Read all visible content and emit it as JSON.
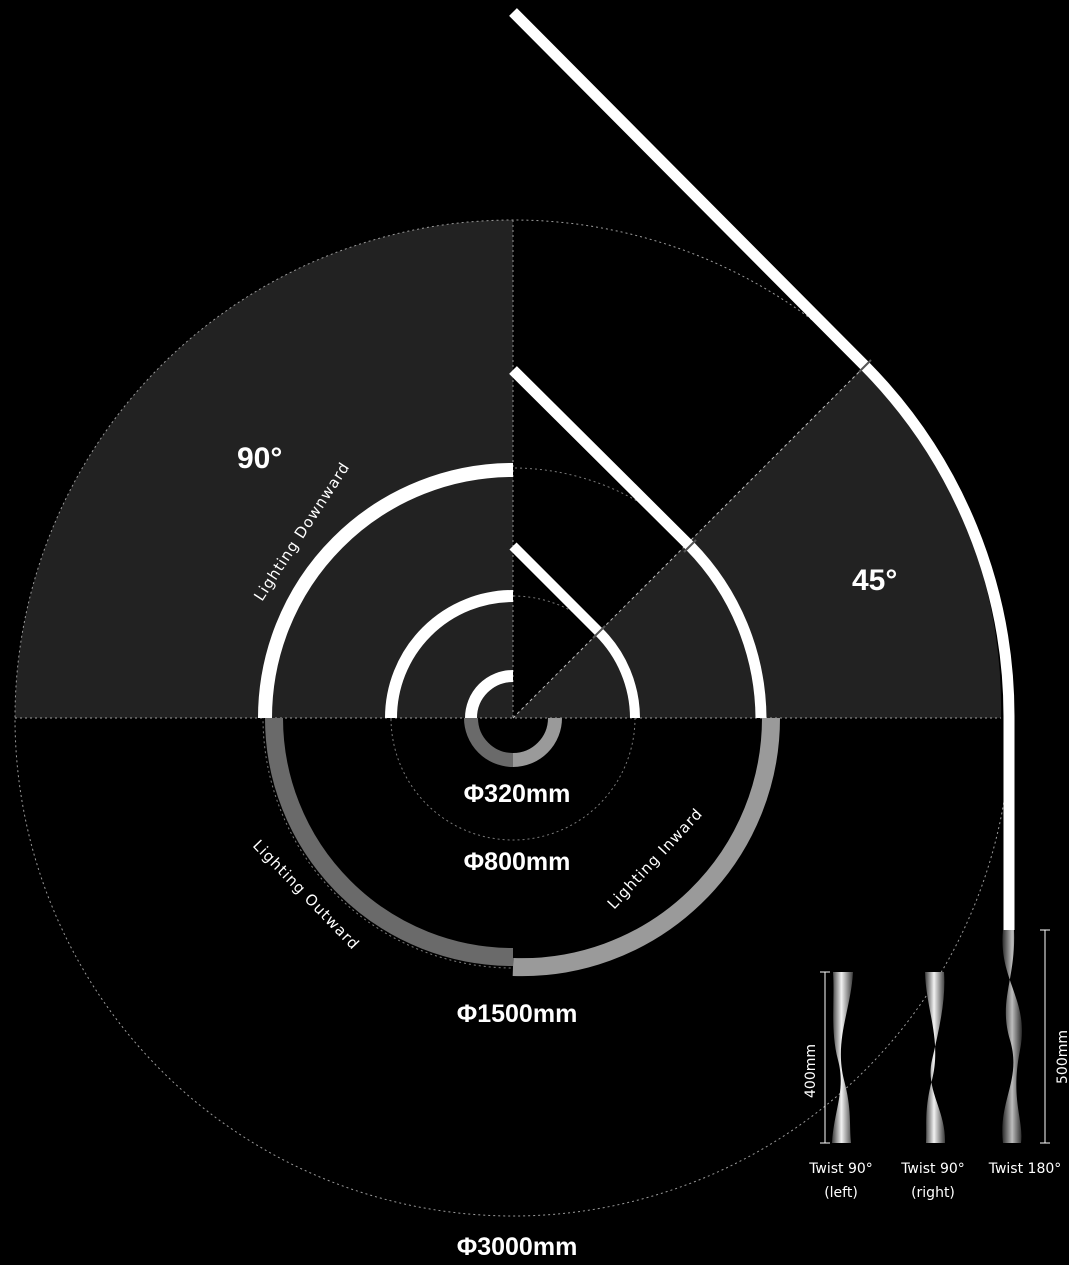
{
  "angles": {
    "a90": "90°",
    "a45": "45°"
  },
  "lighting": {
    "downward": "Lighting Downward",
    "outward": "Lighting Outward",
    "inward": "Lighting Inward"
  },
  "diameters": {
    "d320": "Φ320mm",
    "d800": "Φ800mm",
    "d1500": "Φ1500mm",
    "d3000": "Φ3000mm"
  },
  "twists": {
    "height_400": "400mm",
    "height_500": "500mm",
    "left_line1": "Twist 90°",
    "left_line2": "(left)",
    "right_line1": "Twist 90°",
    "right_line2": "(right)",
    "full_line1": "Twist 180°"
  },
  "colors": {
    "background": "#000000",
    "sector_fill": "#222222",
    "strip_white": "#ffffff",
    "strip_grey": "#9a9a9a",
    "strip_dark": "#6a6a6a"
  }
}
